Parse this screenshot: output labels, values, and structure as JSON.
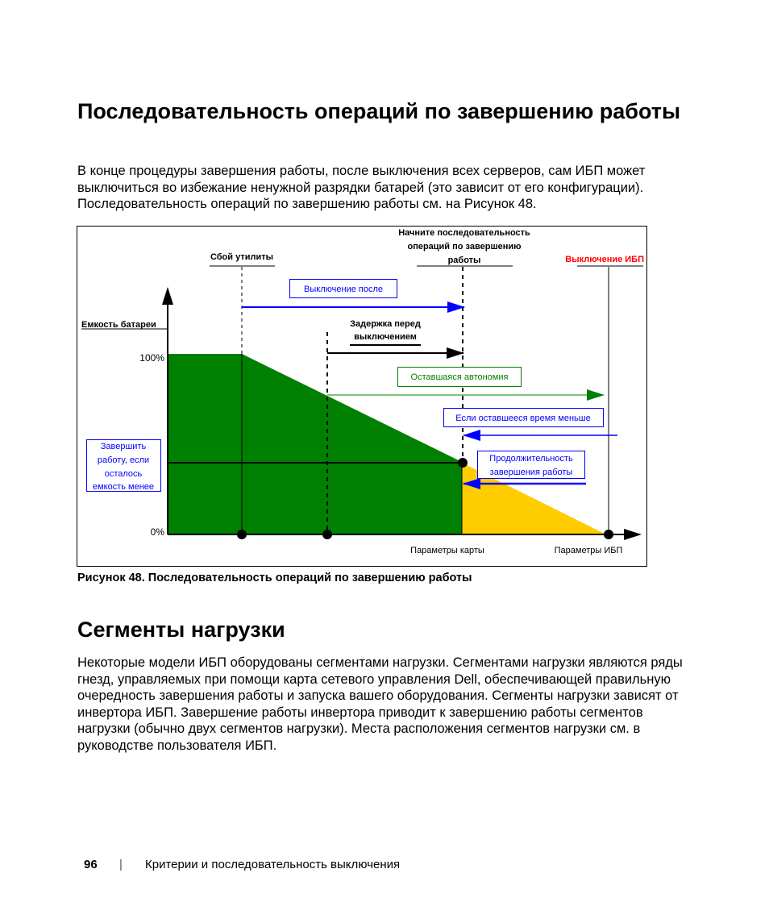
{
  "section1": {
    "title": "Последовательность операций по завершению работы",
    "paragraph": "В конце процедуры завершения работы, после выключения всех серверов, сам ИБП может выключиться во избежание ненужной разрядки батарей (это зависит от его конфигурации). Последовательность операций по завершению работы см. на Рисунок 48."
  },
  "figure": {
    "caption": "Рисунок 48. Последовательность операций по завершению работы",
    "labels": {
      "utility_failure": "Сбой утилиты",
      "start_sequence": [
        "Начните последовательность",
        "операций по завершению",
        "работы"
      ],
      "ups_off": "Выключение ИБП",
      "off_after": "Выключение после",
      "battery_capacity": "Емкость батареи",
      "delay_before": [
        "Задержка перед",
        "выключением"
      ],
      "pct_100": "100%",
      "pct_0": "0%",
      "remaining_runtime": "Оставшаяся автономия",
      "if_remaining_less": "Если оставшееся время меньше",
      "shutdown_duration": [
        "Продолжительность",
        "завершения работы"
      ],
      "shutdown_if_capacity": [
        "Завершить",
        "работу, если",
        "осталось",
        "емкость менее"
      ],
      "card_params": "Параметры карты",
      "ups_params": "Параметры ИБП"
    },
    "colors": {
      "battery_green": "#008000",
      "reserve_yellow": "#ffcc00",
      "blue": "#0000ff",
      "red": "#ff0000",
      "green_arrow": "#008000"
    }
  },
  "section2": {
    "title": "Сегменты нагрузки",
    "paragraph": "Некоторые модели ИБП оборудованы сегментами нагрузки. Сегментами нагрузки являются ряды гнезд, управляемых при помощи карта сетевого управления Dell, обеспечивающей правильную очередность завершения работы и запуска вашего оборудования. Сегменты нагрузки зависят от инвертора ИБП. Завершение работы инвертора приводит к завершению работы сегментов нагрузки (обычно двух сегментов нагрузки). Места расположения сегментов нагрузки см. в руководстве пользователя ИБП."
  },
  "footer": {
    "page_number": "96",
    "separator": "|",
    "chapter": "Критерии и последовательность выключения"
  }
}
